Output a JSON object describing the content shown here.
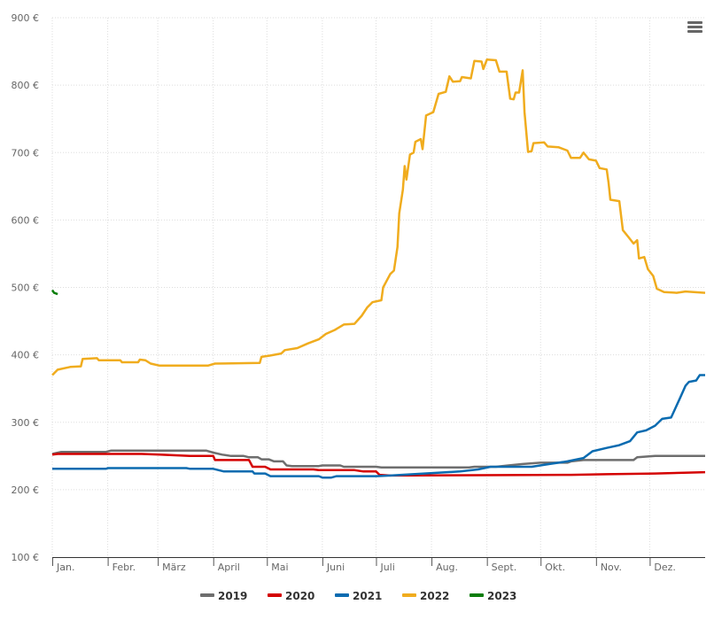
{
  "chart_data": {
    "type": "line",
    "title": "",
    "xlabel": "",
    "ylabel": "",
    "x_unit": "day of year",
    "xlim": [
      0,
      365
    ],
    "ylim": [
      100,
      900
    ],
    "y_ticks": [
      100,
      200,
      300,
      400,
      500,
      600,
      700,
      800,
      900
    ],
    "y_tick_suffix": " €",
    "grid": true,
    "legend_position": "bottom-center",
    "months": [
      "Jan.",
      "Febr.",
      "März",
      "April",
      "Mai",
      "Juni",
      "Juli",
      "Aug.",
      "Sept.",
      "Okt.",
      "Nov.",
      "Dez."
    ],
    "month_start_days": [
      0,
      31,
      59,
      90,
      120,
      151,
      181,
      212,
      243,
      273,
      304,
      334
    ],
    "series": [
      {
        "name": "2019",
        "color": "#6e6e6e",
        "points": [
          [
            0,
            253
          ],
          [
            5,
            256
          ],
          [
            30,
            256
          ],
          [
            33,
            258
          ],
          [
            77,
            258
          ],
          [
            86,
            258
          ],
          [
            90,
            255
          ],
          [
            95,
            252
          ],
          [
            100,
            250
          ],
          [
            107,
            250
          ],
          [
            110,
            248
          ],
          [
            115,
            248
          ],
          [
            117,
            245
          ],
          [
            121,
            245
          ],
          [
            124,
            242
          ],
          [
            129,
            242
          ],
          [
            131,
            236
          ],
          [
            134,
            235
          ],
          [
            149,
            235
          ],
          [
            151,
            236
          ],
          [
            161,
            236
          ],
          [
            163,
            234
          ],
          [
            181,
            234
          ],
          [
            184,
            233
          ],
          [
            233,
            233
          ],
          [
            236,
            234
          ],
          [
            248,
            234
          ],
          [
            255,
            236
          ],
          [
            263,
            238
          ],
          [
            273,
            240
          ],
          [
            288,
            240
          ],
          [
            290,
            242
          ],
          [
            297,
            244
          ],
          [
            325,
            244
          ],
          [
            327,
            248
          ],
          [
            337,
            250
          ],
          [
            365,
            250
          ]
        ]
      },
      {
        "name": "2020",
        "color": "#d40000",
        "points": [
          [
            0,
            252
          ],
          [
            3,
            253
          ],
          [
            50,
            253
          ],
          [
            60,
            252
          ],
          [
            77,
            250
          ],
          [
            90,
            250
          ],
          [
            91,
            244
          ],
          [
            110,
            244
          ],
          [
            112,
            234
          ],
          [
            119,
            234
          ],
          [
            122,
            230
          ],
          [
            146,
            230
          ],
          [
            149,
            229
          ],
          [
            169,
            229
          ],
          [
            174,
            227
          ],
          [
            181,
            227
          ],
          [
            183,
            222
          ],
          [
            189,
            221
          ],
          [
            290,
            222
          ],
          [
            310,
            223
          ],
          [
            337,
            224
          ],
          [
            365,
            226
          ]
        ]
      },
      {
        "name": "2021",
        "color": "#0a6bb0",
        "points": [
          [
            0,
            231
          ],
          [
            30,
            231
          ],
          [
            31,
            232
          ],
          [
            75,
            232
          ],
          [
            77,
            231
          ],
          [
            90,
            231
          ],
          [
            96,
            227
          ],
          [
            112,
            227
          ],
          [
            113,
            224
          ],
          [
            119,
            224
          ],
          [
            122,
            220
          ],
          [
            149,
            220
          ],
          [
            151,
            218
          ],
          [
            156,
            218
          ],
          [
            159,
            220
          ],
          [
            181,
            220
          ],
          [
            189,
            221
          ],
          [
            208,
            224
          ],
          [
            228,
            227
          ],
          [
            238,
            230
          ],
          [
            245,
            234
          ],
          [
            268,
            234
          ],
          [
            278,
            238
          ],
          [
            288,
            242
          ],
          [
            297,
            247
          ],
          [
            302,
            257
          ],
          [
            310,
            262
          ],
          [
            317,
            266
          ],
          [
            323,
            272
          ],
          [
            327,
            285
          ],
          [
            332,
            288
          ],
          [
            337,
            295
          ],
          [
            341,
            305
          ],
          [
            346,
            307
          ],
          [
            351,
            336
          ],
          [
            354,
            354
          ],
          [
            356,
            360
          ],
          [
            360,
            362
          ],
          [
            362,
            370
          ],
          [
            365,
            370
          ]
        ]
      },
      {
        "name": "2022",
        "color": "#f0ac1e",
        "points": [
          [
            0,
            370
          ],
          [
            3,
            378
          ],
          [
            10,
            382
          ],
          [
            16,
            383
          ],
          [
            17,
            394
          ],
          [
            25,
            395
          ],
          [
            26,
            392
          ],
          [
            38,
            392
          ],
          [
            39,
            389
          ],
          [
            48,
            389
          ],
          [
            49,
            393
          ],
          [
            52,
            392
          ],
          [
            55,
            387
          ],
          [
            60,
            384
          ],
          [
            65,
            384
          ],
          [
            87,
            384
          ],
          [
            91,
            387
          ],
          [
            116,
            388
          ],
          [
            117,
            397
          ],
          [
            122,
            399
          ],
          [
            128,
            402
          ],
          [
            130,
            407
          ],
          [
            137,
            410
          ],
          [
            143,
            417
          ],
          [
            149,
            423
          ],
          [
            153,
            431
          ],
          [
            158,
            437
          ],
          [
            163,
            445
          ],
          [
            169,
            446
          ],
          [
            173,
            458
          ],
          [
            176,
            470
          ],
          [
            179,
            478
          ],
          [
            184,
            481
          ],
          [
            185,
            500
          ],
          [
            189,
            520
          ],
          [
            191,
            525
          ],
          [
            193,
            560
          ],
          [
            194,
            610
          ],
          [
            196,
            645
          ],
          [
            197,
            680
          ],
          [
            198,
            660
          ],
          [
            200,
            697
          ],
          [
            202,
            700
          ],
          [
            203,
            716
          ],
          [
            206,
            720
          ],
          [
            207,
            705
          ],
          [
            209,
            755
          ],
          [
            213,
            760
          ],
          [
            216,
            787
          ],
          [
            220,
            790
          ],
          [
            222,
            813
          ],
          [
            224,
            805
          ],
          [
            228,
            806
          ],
          [
            229,
            812
          ],
          [
            234,
            810
          ],
          [
            236,
            836
          ],
          [
            240,
            835
          ],
          [
            241,
            824
          ],
          [
            243,
            838
          ],
          [
            248,
            837
          ],
          [
            250,
            820
          ],
          [
            254,
            820
          ],
          [
            256,
            780
          ],
          [
            258,
            779
          ],
          [
            259,
            789
          ],
          [
            261,
            789
          ],
          [
            263,
            822
          ],
          [
            264,
            760
          ],
          [
            266,
            701
          ],
          [
            268,
            702
          ],
          [
            269,
            714
          ],
          [
            275,
            715
          ],
          [
            277,
            709
          ],
          [
            283,
            708
          ],
          [
            288,
            703
          ],
          [
            290,
            692
          ],
          [
            295,
            692
          ],
          [
            297,
            700
          ],
          [
            300,
            690
          ],
          [
            304,
            688
          ],
          [
            306,
            677
          ],
          [
            310,
            675
          ],
          [
            311,
            655
          ],
          [
            312,
            630
          ],
          [
            317,
            628
          ],
          [
            319,
            585
          ],
          [
            322,
            575
          ],
          [
            325,
            565
          ],
          [
            327,
            570
          ],
          [
            328,
            543
          ],
          [
            331,
            545
          ],
          [
            333,
            527
          ],
          [
            336,
            517
          ],
          [
            338,
            498
          ],
          [
            342,
            493
          ],
          [
            349,
            492
          ],
          [
            354,
            494
          ],
          [
            365,
            492
          ]
        ]
      },
      {
        "name": "2023",
        "color": "#0a7d0a",
        "points": [
          [
            0,
            496
          ],
          [
            1,
            492
          ],
          [
            3,
            490
          ]
        ]
      }
    ]
  }
}
